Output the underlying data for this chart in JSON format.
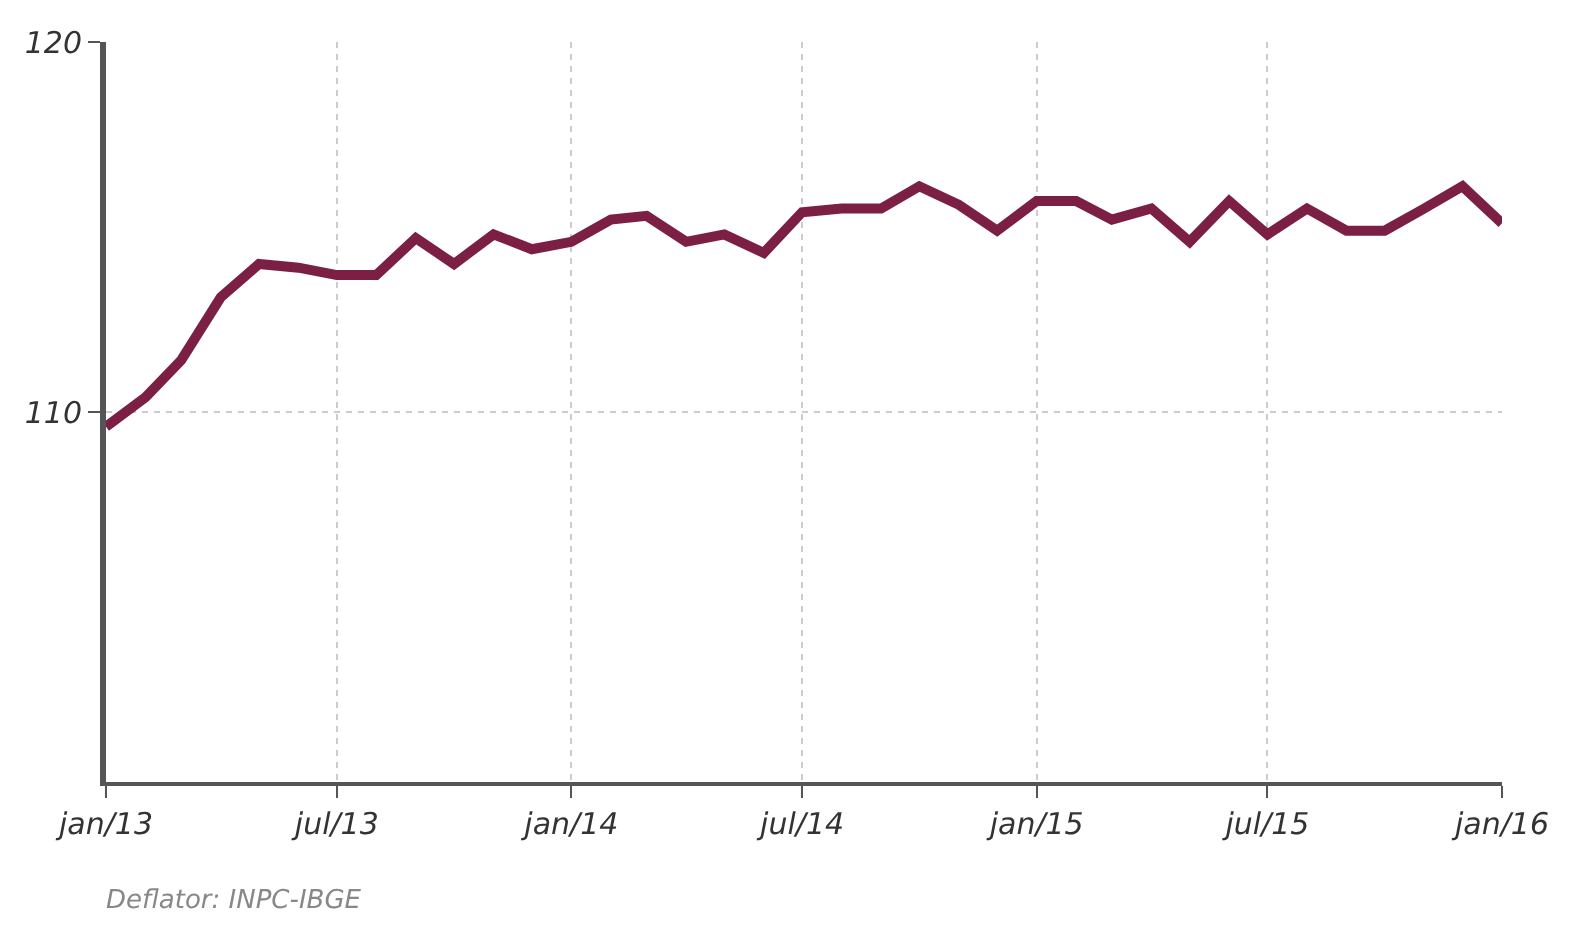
{
  "chart_data": {
    "type": "line",
    "x": [
      "2013-01",
      "2013-02",
      "2013-03",
      "2013-04",
      "2013-05",
      "2013-06",
      "2013-07",
      "2013-08",
      "2013-09",
      "2013-10",
      "2013-11",
      "2013-12",
      "2014-01",
      "2014-02",
      "2014-03",
      "2014-04",
      "2014-05",
      "2014-06",
      "2014-07",
      "2014-08",
      "2014-09",
      "2014-10",
      "2014-11",
      "2014-12",
      "2015-01",
      "2015-02",
      "2015-03",
      "2015-04",
      "2015-05",
      "2015-06",
      "2015-07",
      "2015-08",
      "2015-09",
      "2015-10",
      "2015-11",
      "2015-12",
      "2016-01"
    ],
    "series": [
      {
        "color": "#7b1f45",
        "values": [
          109.6,
          110.4,
          111.4,
          113.1,
          114.0,
          113.9,
          113.7,
          113.7,
          114.7,
          114.0,
          114.8,
          114.4,
          114.6,
          115.2,
          115.3,
          114.6,
          114.8,
          114.3,
          115.4,
          115.5,
          115.5,
          116.1,
          115.6,
          114.9,
          115.7,
          115.7,
          115.2,
          115.5,
          114.6,
          115.7,
          114.8,
          115.5,
          114.9,
          114.9,
          115.5,
          116.1,
          115.1
        ]
      }
    ],
    "xlim": [
      "2013-01",
      "2016-01"
    ],
    "xticks": [
      {
        "value": "2013-01",
        "label": "jan/13"
      },
      {
        "value": "2013-07",
        "label": "jul/13"
      },
      {
        "value": "2014-01",
        "label": "jan/14"
      },
      {
        "value": "2014-07",
        "label": "jul/14"
      },
      {
        "value": "2015-01",
        "label": "jan/15"
      },
      {
        "value": "2015-07",
        "label": "jul/15"
      },
      {
        "value": "2016-01",
        "label": "jan/16"
      }
    ],
    "ylim": [
      100,
      120
    ],
    "yticks": [
      110,
      120
    ],
    "grid": true,
    "marker": "none",
    "line_style": "solid",
    "annotations": [
      "Deflator: INPC-IBGE"
    ]
  }
}
